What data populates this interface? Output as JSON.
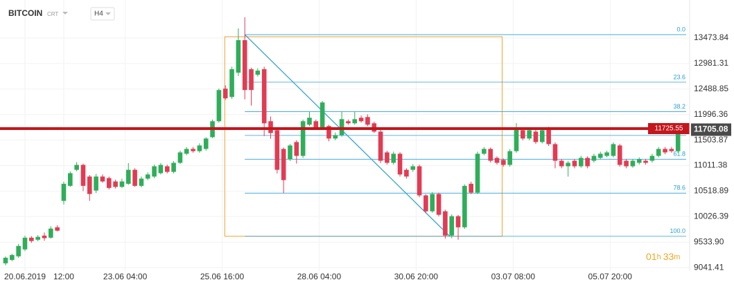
{
  "chart_data": {
    "type": "candlestick",
    "title": "BITCOIN",
    "subtitle": "CRT",
    "interval": "H4",
    "colors": {
      "up": "#2fae5a",
      "down": "#e23b53"
    },
    "series": {
      "open": [
        9125,
        9190,
        9260,
        9393,
        9620,
        9580,
        9660,
        9620,
        9820,
        10330,
        10620,
        10930,
        11025,
        10800,
        10530,
        10800,
        10770,
        10705,
        10600,
        10660,
        10930,
        10620,
        10760,
        10800,
        10865,
        10998,
        10890,
        11065,
        11240,
        11333,
        11290,
        11333,
        11560,
        11868,
        12497,
        12337,
        12805,
        13433,
        12872,
        12765,
        12872,
        11868,
        11694,
        11333,
        11132,
        11466,
        11199,
        11801,
        11868,
        11734,
        11774,
        11534,
        11600,
        11868,
        11828,
        11935,
        11948,
        11828,
        11667,
        11266,
        11065,
        11240,
        10930,
        10930,
        10998,
        10436,
        10129,
        10463,
        10129,
        9661,
        10035,
        9820,
        10660,
        10490,
        11240,
        11333,
        11160,
        11120,
        11025,
        11290,
        11694,
        11534,
        11667,
        11466,
        11734,
        11426,
        11105,
        10998,
        11105,
        10998,
        11160,
        11105,
        11160,
        11199,
        11199,
        11400,
        11105,
        10998,
        11065,
        11105,
        11105,
        11199,
        11333,
        11333,
        11290
      ],
      "high": [
        9259,
        9310,
        9500,
        9660,
        9650,
        9670,
        9720,
        9840,
        9860,
        10700,
        10900,
        11080,
        11050,
        10830,
        10850,
        10840,
        10800,
        10740,
        10760,
        11060,
        10960,
        10800,
        10880,
        11030,
        11060,
        11030,
        11100,
        11300,
        11370,
        11370,
        11440,
        11560,
        11900,
        12500,
        12560,
        12920,
        13660,
        13875,
        12900,
        12890,
        12920,
        11960,
        11720,
        11360,
        11430,
        11500,
        11900,
        12050,
        11900,
        12260,
        11800,
        11650,
        12050,
        11900,
        12050,
        11980,
        12000,
        11860,
        11700,
        11300,
        11280,
        11270,
        10960,
        11040,
        11030,
        10460,
        10500,
        10490,
        10160,
        10070,
        10060,
        10650,
        10700,
        11280,
        11370,
        11360,
        11190,
        11150,
        11330,
        11830,
        11730,
        11740,
        11700,
        11730,
        11760,
        11460,
        11140,
        11100,
        11140,
        11200,
        11190,
        11240,
        11280,
        11300,
        11460,
        11430,
        11140,
        11140,
        11170,
        11140,
        11240,
        11370,
        11370,
        11370,
        11730
      ],
      "low": [
        9085,
        9165,
        9230,
        9360,
        9520,
        9550,
        9560,
        9600,
        9740,
        10260,
        10600,
        10900,
        10520,
        10330,
        10480,
        10680,
        10550,
        10570,
        10580,
        10640,
        10600,
        10590,
        10730,
        10770,
        10840,
        10860,
        10860,
        11040,
        11210,
        11260,
        11260,
        11300,
        11540,
        11840,
        12280,
        12300,
        12740,
        12290,
        12170,
        12730,
        11580,
        11530,
        10860,
        10480,
        11100,
        11050,
        11160,
        11770,
        11700,
        11700,
        11480,
        11500,
        11570,
        11800,
        11800,
        11840,
        11770,
        11640,
        11060,
        11030,
        11030,
        10800,
        10760,
        10890,
        10400,
        10090,
        10100,
        10030,
        9600,
        9610,
        9580,
        9790,
        10460,
        10460,
        11210,
        11070,
        11030,
        10990,
        10990,
        11260,
        11500,
        11500,
        11430,
        11440,
        11390,
        10960,
        10960,
        10800,
        10960,
        10970,
        10960,
        11070,
        11130,
        11170,
        11170,
        10990,
        10960,
        10970,
        11030,
        11030,
        11070,
        11170,
        11230,
        11260,
        11260
      ],
      "close": [
        9232,
        9285,
        9460,
        9620,
        9555,
        9635,
        9610,
        9795,
        9755,
        10660,
        10865,
        11025,
        10620,
        10463,
        10800,
        10705,
        10580,
        10600,
        10705,
        10930,
        10620,
        10760,
        10840,
        10998,
        11025,
        10890,
        11065,
        11266,
        11333,
        11290,
        11400,
        11534,
        11868,
        12470,
        12310,
        12872,
        13433,
        12470,
        12470,
        12845,
        11828,
        11640,
        10930,
        10731,
        11400,
        11199,
        11868,
        11935,
        11734,
        12230,
        11534,
        11600,
        11908,
        11828,
        11908,
        11868,
        11801,
        11667,
        11105,
        11065,
        11240,
        10840,
        10800,
        10998,
        10436,
        10129,
        10463,
        10062,
        9661,
        10035,
        9820,
        10620,
        10490,
        11240,
        11333,
        11105,
        11065,
        11025,
        11290,
        11734,
        11534,
        11694,
        11466,
        11694,
        11426,
        11105,
        10998,
        11065,
        10998,
        11160,
        10998,
        11199,
        11240,
        11266,
        11426,
        11025,
        10998,
        11105,
        11132,
        11065,
        11199,
        11333,
        11266,
        11290,
        11705.08
      ]
    },
    "xlim": [
      -0.86,
      105.8
    ],
    "xticks": [
      {
        "value": 3,
        "label": "20.06.2019"
      },
      {
        "value": 9,
        "label": "12:00"
      },
      {
        "value": 18.5,
        "label": "23.06 04:00"
      },
      {
        "value": 33.5,
        "label": "25.06 16:00"
      },
      {
        "value": 48.5,
        "label": "28.06 04:00"
      },
      {
        "value": 63.5,
        "label": "30.06 20:00"
      },
      {
        "value": 78.5,
        "label": "03.07 08:00"
      },
      {
        "value": 93.5,
        "label": "05.07 20:00"
      }
    ],
    "ylim": [
      8976,
      14208
    ],
    "yticks": [
      13473.84,
      12981.31,
      12488.85,
      11996.36,
      11503.87,
      11011.38,
      10518.89,
      10026.39,
      {
        "value": 9533.9,
        "label": "9533.90"
      },
      9041.41
    ],
    "grid": true,
    "price_line": {
      "value": 11725.55,
      "label": "11725.55",
      "color": "#c4161c"
    },
    "last_price": {
      "value": 11705.08,
      "label": "11705.08"
    },
    "fibonacci": {
      "x": [
        37,
        68.7
      ],
      "box_x": [
        33.9,
        76.8
      ],
      "line_color": "#2a9fd6",
      "box_color": "#f0a030",
      "levels": [
        {
          "label": "0.0",
          "price": 13540
        },
        {
          "label": "23.6",
          "price": 12621
        },
        {
          "label": "38.2",
          "price": 12053
        },
        {
          "label": null,
          "price": 11594
        },
        {
          "label": "61.8",
          "price": 11134
        },
        {
          "label": "78.6",
          "price": 10480
        },
        {
          "label": "100.0",
          "price": 9647
        }
      ]
    },
    "timer": {
      "hours": "01",
      "h": "h",
      "minutes": "33",
      "m": "m"
    }
  }
}
